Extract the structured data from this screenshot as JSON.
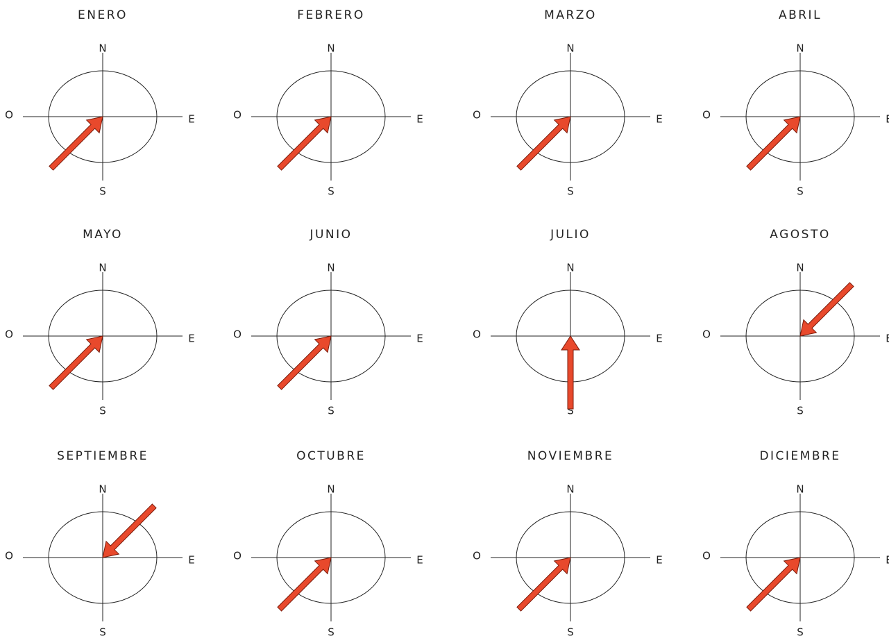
{
  "compass": {
    "n": "N",
    "e": "E",
    "s": "S",
    "o": "O"
  },
  "panels": [
    {
      "month": "ENERO",
      "from_deg": 225
    },
    {
      "month": "FEBRERO",
      "from_deg": 225
    },
    {
      "month": "MARZO",
      "from_deg": 225
    },
    {
      "month": "ABRIL",
      "from_deg": 225
    },
    {
      "month": "MAYO",
      "from_deg": 225
    },
    {
      "month": "JUNIO",
      "from_deg": 225
    },
    {
      "month": "JULIO",
      "from_deg": 180
    },
    {
      "month": "AGOSTO",
      "from_deg": 45
    },
    {
      "month": "SEPTIEMBRE",
      "from_deg": 45
    },
    {
      "month": "OCTUBRE",
      "from_deg": 225
    },
    {
      "month": "NOVIEMBRE",
      "from_deg": 225
    },
    {
      "month": "DICIEMBRE",
      "from_deg": 225
    }
  ]
}
